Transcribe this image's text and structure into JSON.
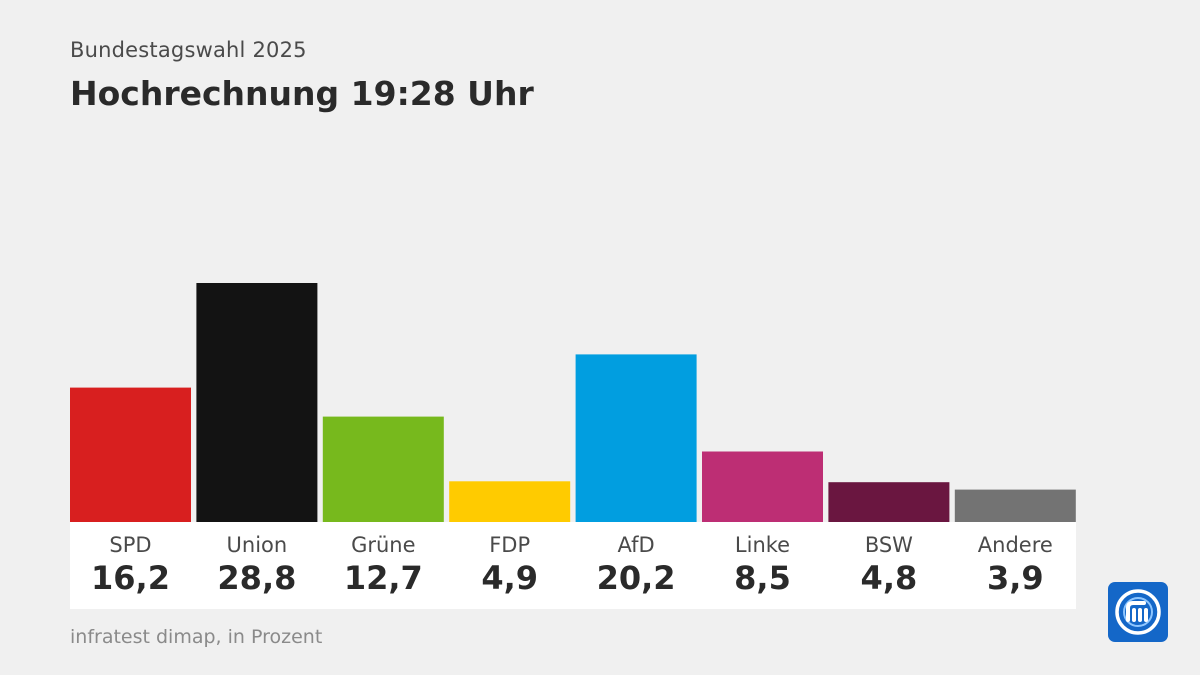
{
  "header": {
    "subtitle": "Bundestagswahl 2025",
    "title": "Hochrechnung 19:28 Uhr"
  },
  "footer": {
    "source": "infratest dimap, in Prozent"
  },
  "logo": {
    "icon": "ard-tagesschau-logo-icon",
    "color": "#1467c8"
  },
  "chart_data": {
    "type": "bar",
    "title": "Hochrechnung 19:28 Uhr",
    "subtitle": "Bundestagswahl 2025",
    "xlabel": "",
    "ylabel": "Prozent",
    "ylim": [
      0,
      28.8
    ],
    "grid": false,
    "categories": [
      "SPD",
      "Union",
      "Grüne",
      "FDP",
      "AfD",
      "Linke",
      "BSW",
      "Andere"
    ],
    "values": [
      16.2,
      28.8,
      12.7,
      4.9,
      20.2,
      8.5,
      4.8,
      3.9
    ],
    "value_labels": [
      "16,2",
      "28,8",
      "12,7",
      "4,9",
      "20,2",
      "8,5",
      "4,8",
      "3,9"
    ],
    "colors": [
      "#d81f1f",
      "#131313",
      "#77b91d",
      "#ffcb00",
      "#019ee0",
      "#bd2e74",
      "#6a1640",
      "#737373"
    ]
  }
}
